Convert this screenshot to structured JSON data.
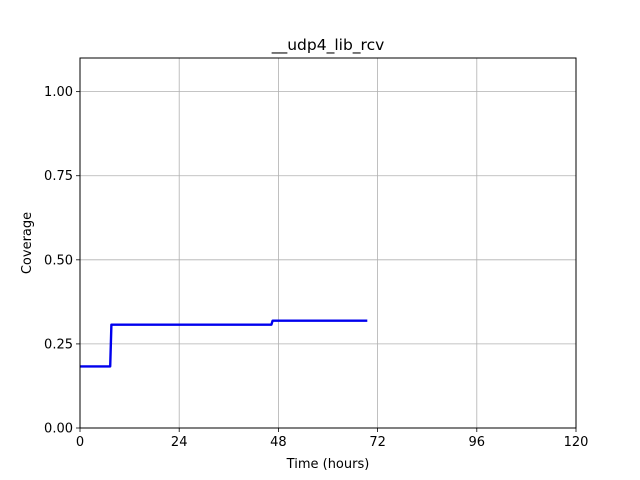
{
  "chart_data": {
    "type": "line",
    "title": "__udp4_lib_rcv",
    "xlabel": "Time (hours)",
    "ylabel": "Coverage",
    "xlim": [
      0,
      120
    ],
    "ylim": [
      0,
      1.1
    ],
    "xticks": [
      0,
      24,
      48,
      72,
      96,
      120
    ],
    "xtick_labels": [
      "0",
      "24",
      "48",
      "72",
      "96",
      "120"
    ],
    "yticks": [
      0,
      0.25,
      0.5,
      0.75,
      1.0
    ],
    "ytick_labels": [
      "0.00",
      "0.25",
      "0.50",
      "0.75",
      "1.00"
    ],
    "grid": true,
    "series": [
      {
        "color": "#0000ee",
        "x": [
          0,
          7.3,
          7.6,
          46.3,
          46.6,
          69.5
        ],
        "y": [
          0.183,
          0.183,
          0.307,
          0.307,
          0.319,
          0.319
        ]
      }
    ]
  }
}
